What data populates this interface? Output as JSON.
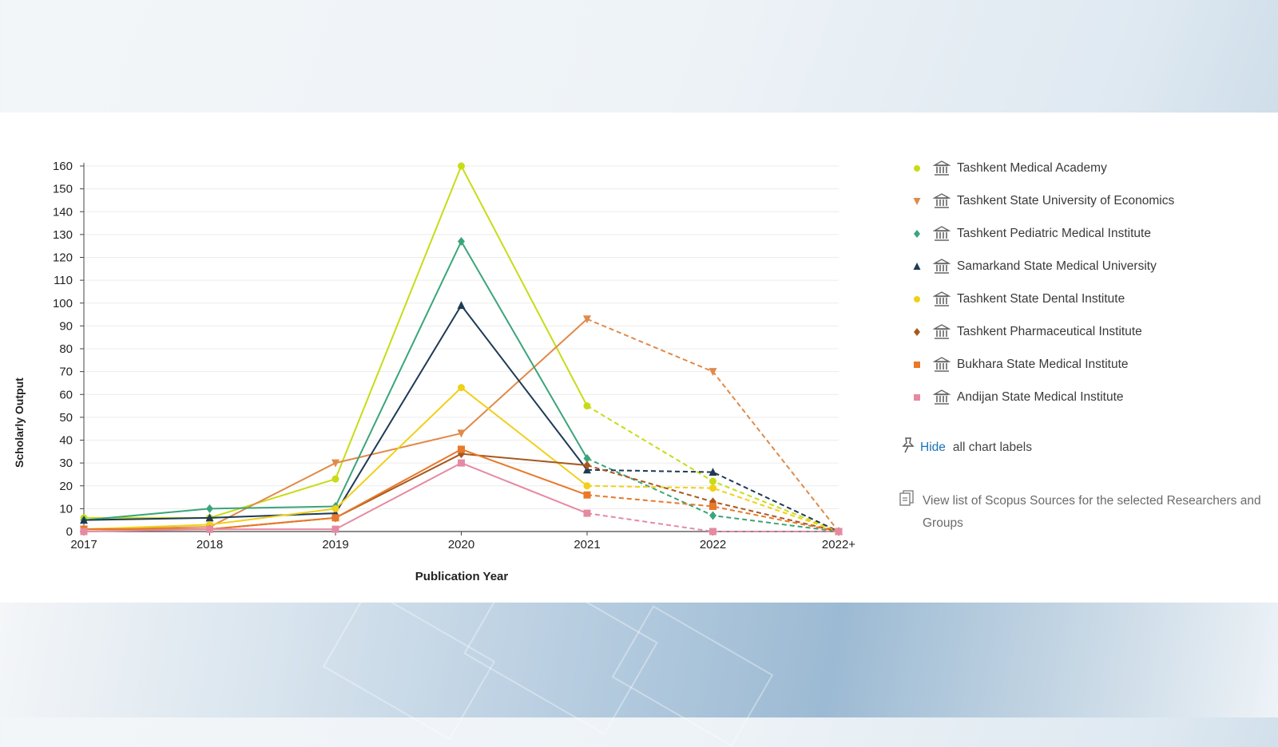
{
  "chart_data": {
    "type": "line",
    "xlabel": "Publication Year",
    "ylabel": "Scholarly Output",
    "categories": [
      "2017",
      "2018",
      "2019",
      "2020",
      "2021",
      "2022",
      "2022+"
    ],
    "ylim": [
      0,
      160
    ],
    "yticks": [
      0,
      10,
      20,
      30,
      40,
      50,
      60,
      70,
      80,
      90,
      100,
      110,
      120,
      130,
      140,
      150,
      160
    ],
    "grid": true,
    "legend_position": "right",
    "note": "solid lines through 2021, dashed lines from 2021 onward",
    "series": [
      {
        "name": "Tashkent Medical Academy",
        "color": "#c8dc16",
        "marker": "circle",
        "values": [
          6,
          6,
          23,
          160,
          55,
          22,
          0
        ]
      },
      {
        "name": "Tashkent State University of Economics",
        "color": "#e08a4a",
        "marker": "triangle-down",
        "values": [
          1,
          2,
          30,
          43,
          93,
          70,
          0
        ]
      },
      {
        "name": "Tashkent Pediatric Medical Institute",
        "color": "#3aa57a",
        "marker": "diamond",
        "values": [
          5,
          10,
          11,
          127,
          32,
          7,
          0
        ]
      },
      {
        "name": "Samarkand State Medical University",
        "color": "#1f3a55",
        "marker": "triangle",
        "values": [
          5,
          6,
          8,
          99,
          27,
          26,
          0
        ]
      },
      {
        "name": "Tashkent State Dental Institute",
        "color": "#f0d018",
        "marker": "circle",
        "values": [
          1,
          3,
          10,
          63,
          20,
          19,
          0
        ]
      },
      {
        "name": "Tashkent Pharmaceutical Institute",
        "color": "#a8581e",
        "marker": "diamond",
        "values": [
          1,
          1,
          6,
          34,
          29,
          13,
          0
        ]
      },
      {
        "name": "Bukhara State Medical Institute",
        "color": "#e8782a",
        "marker": "square",
        "values": [
          1,
          1,
          6,
          36,
          16,
          11,
          0
        ]
      },
      {
        "name": "Andijan State Medical Institute",
        "color": "#e58aa2",
        "marker": "square",
        "values": [
          0,
          1,
          1,
          30,
          8,
          0,
          0
        ]
      }
    ]
  },
  "legend": {
    "items": [
      {
        "label": "Tashkent Medical Academy"
      },
      {
        "label": "Tashkent State University of Economics"
      },
      {
        "label": "Tashkent Pediatric Medical Institute"
      },
      {
        "label": "Samarkand State Medical University"
      },
      {
        "label": "Tashkent State Dental Institute"
      },
      {
        "label": "Tashkent Pharmaceutical Institute"
      },
      {
        "label": "Bukhara State Medical Institute"
      },
      {
        "label": "Andijan State Medical Institute"
      }
    ],
    "hide_link": "Hide",
    "hide_text": "all chart labels",
    "view_list_text": "View list of Scopus Sources for the selected Researchers and Groups"
  }
}
